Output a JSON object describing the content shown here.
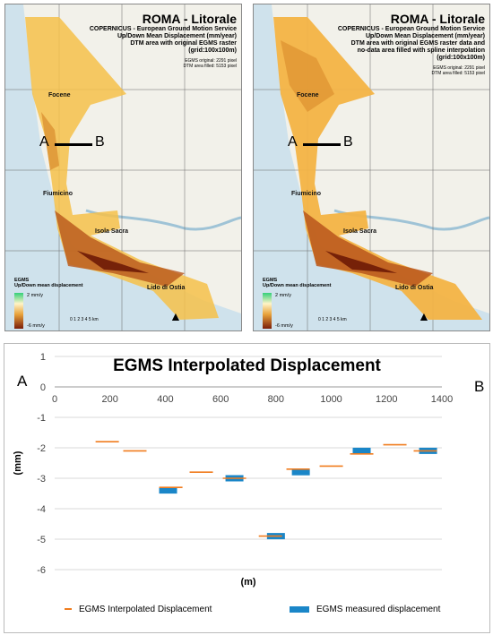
{
  "maps": [
    {
      "title": "ROMA - Litorale",
      "subtitle_lines": [
        "COPERNICUS - European Ground Motion Service",
        "Up/Down Mean Displacement (mm/year)",
        "DTM area with original EGMS raster",
        "(grid:100x100m)"
      ],
      "stats": [
        "EGMS original: 2291 pixel",
        "DTM area filled: 5153 pixel"
      ]
    },
    {
      "title": "ROMA - Litorale",
      "subtitle_lines": [
        "COPERNICUS - European Ground Motion Service",
        "Up/Down Mean Displacement (mm/year)",
        "DTM area with original EGMS raster data and",
        "no-data area filled with spline interpolation",
        "(grid:100x100m)"
      ],
      "stats": [
        "EGMS original: 2291 pixel",
        "DTM area filled: 5153 pixel"
      ]
    }
  ],
  "map_labels": {
    "places": [
      "Focene",
      "Fiumicino",
      "Isola Sacra",
      "Lido di Ostia"
    ],
    "section_a": "A",
    "section_b": "B",
    "legend_title": "EGMS",
    "legend_sub": "Up/Down mean displacement",
    "legend_high": "2 mm/y",
    "legend_low": "-6 mm/y",
    "scale": "0 1 2 3 4 5 km"
  },
  "chart_data": {
    "type": "scatter",
    "title": "EGMS Interpolated Displacement",
    "xlabel": "(m)",
    "ylabel": "(mm)",
    "xlim": [
      0,
      1400
    ],
    "ylim": [
      -6,
      1
    ],
    "xticks": [
      0,
      200,
      400,
      600,
      800,
      1000,
      1200,
      1400
    ],
    "yticks": [
      1,
      0,
      -1,
      -2,
      -3,
      -4,
      -5,
      -6
    ],
    "end_left": "A",
    "end_right": "B",
    "series": [
      {
        "name": "EGMS Interpolated Displacement",
        "color": "#f07c1e",
        "marker": "dash",
        "x": [
          190,
          290,
          420,
          530,
          650,
          780,
          880,
          1000,
          1110,
          1230,
          1340
        ],
        "y": [
          -1.8,
          -2.1,
          -3.3,
          -2.8,
          -3.0,
          -4.9,
          -2.7,
          -2.6,
          -2.2,
          -1.9,
          -2.1
        ]
      },
      {
        "name": "EGMS measured displacement",
        "color": "#1a86c8",
        "marker": "bar",
        "x": [
          410,
          650,
          800,
          890,
          1110,
          1350
        ],
        "y": [
          -3.4,
          -3.0,
          -4.9,
          -2.8,
          -2.1,
          -2.1
        ]
      }
    ],
    "legend_position": "bottom"
  }
}
